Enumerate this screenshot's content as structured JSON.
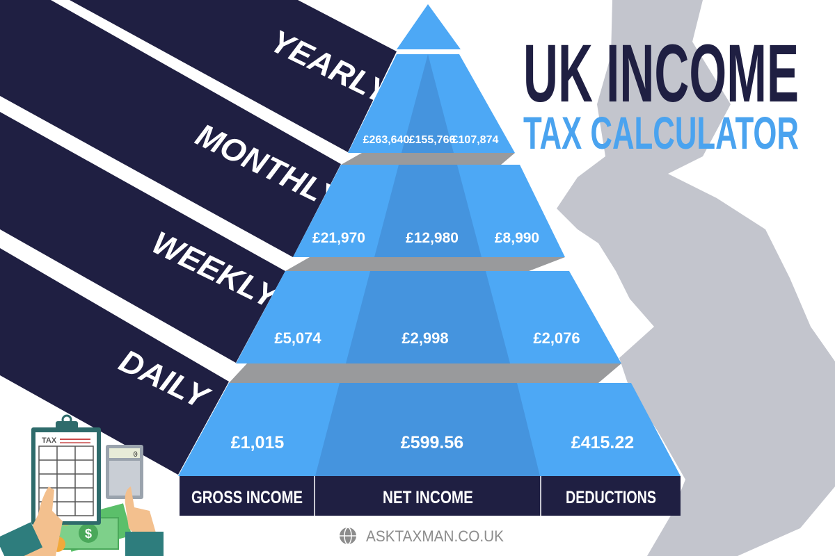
{
  "title": {
    "line1": "UK INCOME",
    "line2": "TAX CALCULATOR"
  },
  "colors": {
    "navy": "#1f1f42",
    "blue": "#4da8f5",
    "blue_dark": "#4594de",
    "gray": "#999a9c",
    "map": "#c3c5cd",
    "title_blue": "#4aa3ef"
  },
  "periods": [
    {
      "label": "YEARLY",
      "gross": "£263,640",
      "net": "£155,766",
      "deductions": "£107,874"
    },
    {
      "label": "MONTHLY",
      "gross": "£21,970",
      "net": "£12,980",
      "deductions": "£8,990"
    },
    {
      "label": "WEEKLY",
      "gross": "£5,074",
      "net": "£2,998",
      "deductions": "£2,076"
    },
    {
      "label": "DAILY",
      "gross": "£1,015",
      "net": "£599.56",
      "deductions": "£415.22"
    }
  ],
  "columns": [
    "GROSS INCOME",
    "NET INCOME",
    "DEDUCTIONS"
  ],
  "footer": {
    "website": "ASKTAXMAN.CO.UK",
    "icon": "globe-icon"
  },
  "illustration": {
    "clipboard_label": "TAX",
    "calculator_display": "0"
  }
}
